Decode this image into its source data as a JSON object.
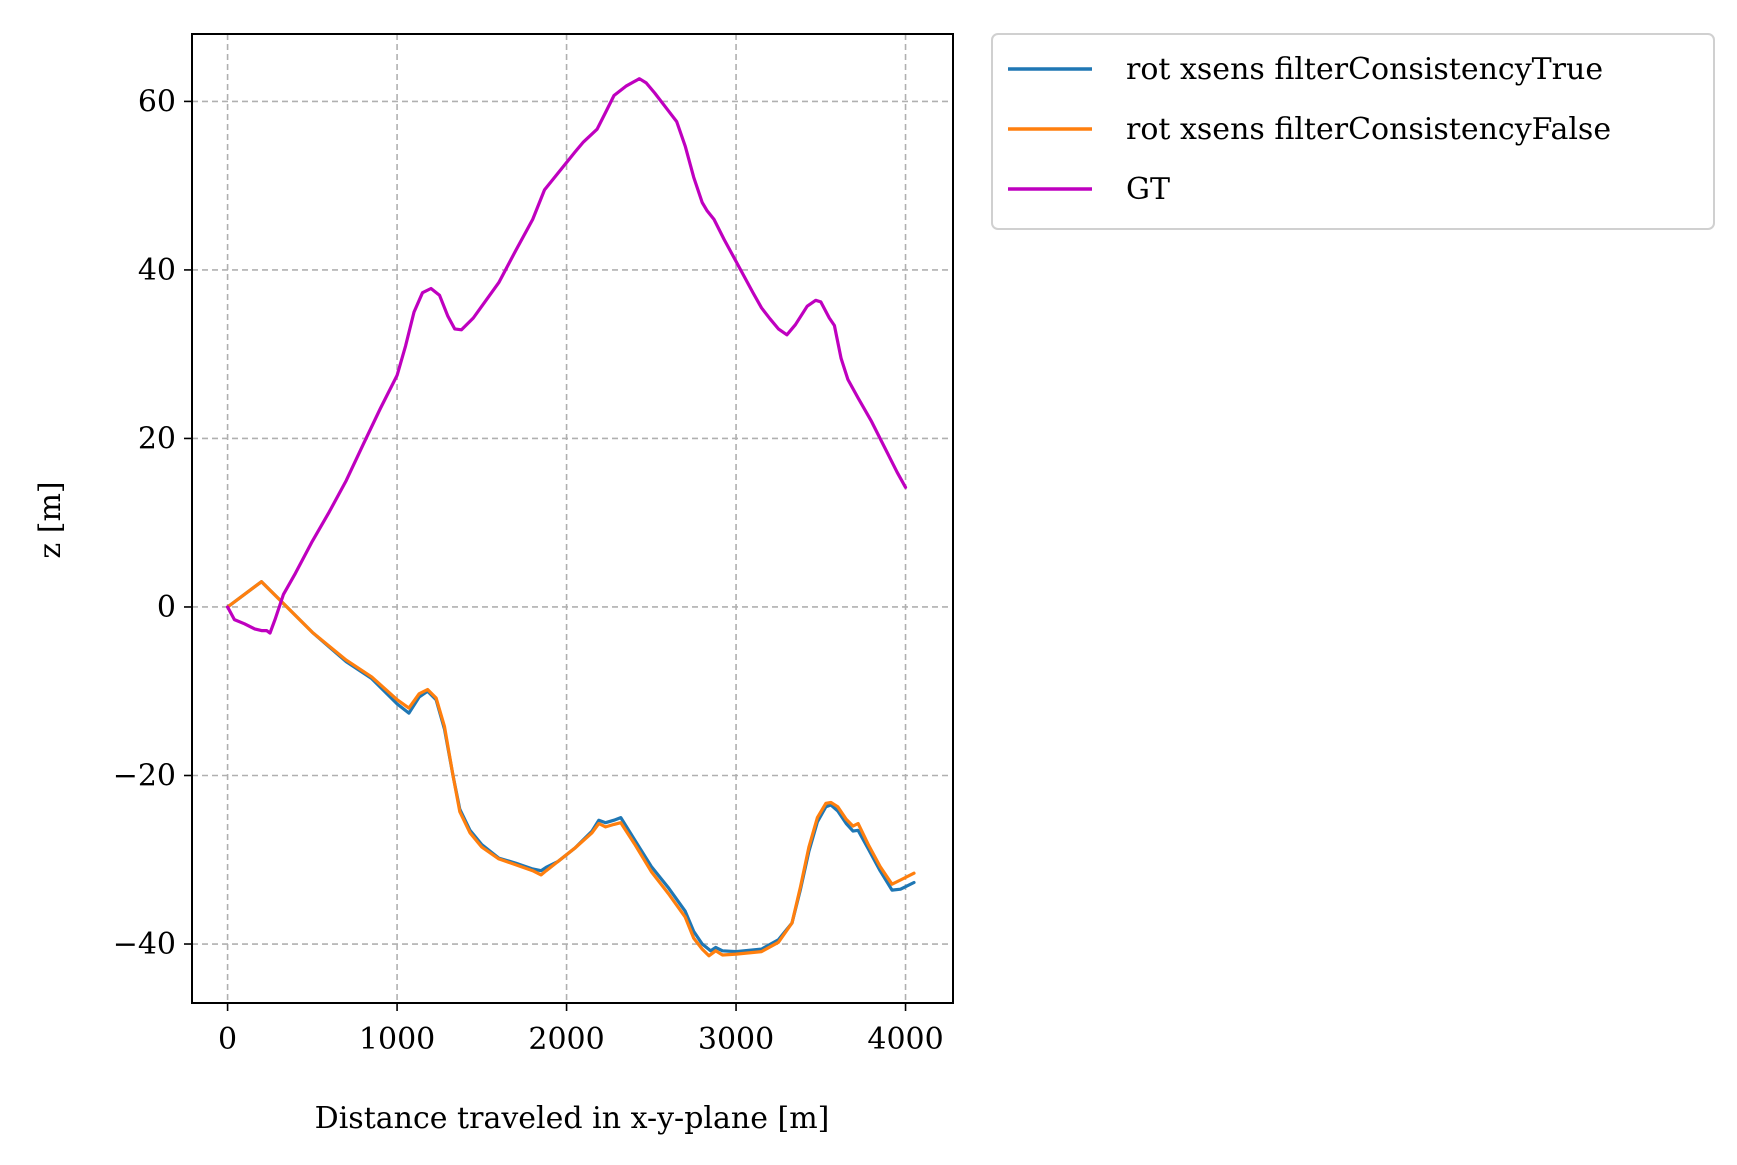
{
  "chart_data": {
    "type": "line",
    "xlabel": "Distance traveled in x-y-plane [m]",
    "ylabel": "z [m]",
    "xlim": [
      -210,
      4280
    ],
    "ylim": [
      -47,
      68
    ],
    "xticks": [
      0,
      1000,
      2000,
      3000,
      4000
    ],
    "yticks": [
      -40,
      -20,
      0,
      20,
      40,
      60
    ],
    "xtick_labels": [
      "0",
      "1000",
      "2000",
      "3000",
      "4000"
    ],
    "ytick_labels": [
      "−40",
      "−20",
      "0",
      "20",
      "40",
      "60"
    ],
    "grid": true,
    "legend_position": "outside-top-right",
    "series": [
      {
        "name": "rot xsens filterConsistencyTrue",
        "color": "#1f77b4",
        "points": [
          [
            0,
            0
          ],
          [
            200,
            3
          ],
          [
            300,
            1
          ],
          [
            500,
            -3
          ],
          [
            700,
            -6.5
          ],
          [
            850,
            -8.5
          ],
          [
            1000,
            -11.5
          ],
          [
            1070,
            -12.6
          ],
          [
            1130,
            -10.7
          ],
          [
            1180,
            -10
          ],
          [
            1230,
            -11
          ],
          [
            1280,
            -14.5
          ],
          [
            1330,
            -20
          ],
          [
            1370,
            -24
          ],
          [
            1430,
            -26.5
          ],
          [
            1500,
            -28.2
          ],
          [
            1600,
            -29.8
          ],
          [
            1700,
            -30.4
          ],
          [
            1800,
            -31.1
          ],
          [
            1850,
            -31.3
          ],
          [
            1880,
            -30.9
          ],
          [
            1950,
            -30.2
          ],
          [
            2050,
            -28.6
          ],
          [
            2150,
            -26.6
          ],
          [
            2190,
            -25.3
          ],
          [
            2230,
            -25.6
          ],
          [
            2280,
            -25.3
          ],
          [
            2320,
            -25
          ],
          [
            2400,
            -27.6
          ],
          [
            2500,
            -30.8
          ],
          [
            2600,
            -33.3
          ],
          [
            2700,
            -36.1
          ],
          [
            2750,
            -38.5
          ],
          [
            2800,
            -40
          ],
          [
            2850,
            -40.8
          ],
          [
            2880,
            -40.4
          ],
          [
            2920,
            -40.8
          ],
          [
            3000,
            -40.9
          ],
          [
            3150,
            -40.6
          ],
          [
            3250,
            -39.5
          ],
          [
            3330,
            -37.5
          ],
          [
            3380,
            -33.5
          ],
          [
            3430,
            -29
          ],
          [
            3480,
            -25.5
          ],
          [
            3530,
            -23.7
          ],
          [
            3560,
            -23.5
          ],
          [
            3600,
            -24.2
          ],
          [
            3650,
            -25.7
          ],
          [
            3690,
            -26.6
          ],
          [
            3720,
            -26.5
          ],
          [
            3780,
            -28.7
          ],
          [
            3850,
            -31.3
          ],
          [
            3920,
            -33.6
          ],
          [
            3970,
            -33.5
          ],
          [
            4050,
            -32.7
          ]
        ]
      },
      {
        "name": "rot xsens filterConsistencyFalse",
        "color": "#ff7f0e",
        "points": [
          [
            0,
            0
          ],
          [
            200,
            3
          ],
          [
            300,
            1
          ],
          [
            500,
            -3
          ],
          [
            700,
            -6.3
          ],
          [
            850,
            -8.3
          ],
          [
            1000,
            -11
          ],
          [
            1070,
            -12
          ],
          [
            1130,
            -10.3
          ],
          [
            1180,
            -9.8
          ],
          [
            1230,
            -10.8
          ],
          [
            1280,
            -14.2
          ],
          [
            1330,
            -20
          ],
          [
            1370,
            -24.3
          ],
          [
            1430,
            -26.8
          ],
          [
            1500,
            -28.5
          ],
          [
            1600,
            -29.9
          ],
          [
            1700,
            -30.6
          ],
          [
            1800,
            -31.3
          ],
          [
            1850,
            -31.8
          ],
          [
            1880,
            -31.3
          ],
          [
            1950,
            -30.2
          ],
          [
            2050,
            -28.6
          ],
          [
            2150,
            -26.8
          ],
          [
            2190,
            -25.7
          ],
          [
            2230,
            -26.1
          ],
          [
            2280,
            -25.8
          ],
          [
            2320,
            -25.6
          ],
          [
            2400,
            -28.1
          ],
          [
            2500,
            -31.4
          ],
          [
            2600,
            -34
          ],
          [
            2700,
            -36.8
          ],
          [
            2750,
            -39.3
          ],
          [
            2800,
            -40.6
          ],
          [
            2840,
            -41.4
          ],
          [
            2880,
            -40.8
          ],
          [
            2920,
            -41.3
          ],
          [
            3000,
            -41.2
          ],
          [
            3150,
            -40.9
          ],
          [
            3250,
            -39.8
          ],
          [
            3330,
            -37.5
          ],
          [
            3380,
            -33.2
          ],
          [
            3430,
            -28.5
          ],
          [
            3480,
            -25
          ],
          [
            3530,
            -23.3
          ],
          [
            3560,
            -23.2
          ],
          [
            3600,
            -23.7
          ],
          [
            3650,
            -25.2
          ],
          [
            3690,
            -26
          ],
          [
            3720,
            -25.7
          ],
          [
            3780,
            -28.2
          ],
          [
            3850,
            -30.8
          ],
          [
            3920,
            -32.9
          ],
          [
            3970,
            -32.4
          ],
          [
            4050,
            -31.6
          ]
        ]
      },
      {
        "name": "GT",
        "color": "#bf00bf",
        "points": [
          [
            0,
            0
          ],
          [
            40,
            -1.5
          ],
          [
            100,
            -2
          ],
          [
            160,
            -2.6
          ],
          [
            200,
            -2.8
          ],
          [
            230,
            -2.8
          ],
          [
            250,
            -3.1
          ],
          [
            280,
            -1.5
          ],
          [
            330,
            1.5
          ],
          [
            400,
            4
          ],
          [
            500,
            7.8
          ],
          [
            600,
            11.3
          ],
          [
            700,
            15
          ],
          [
            800,
            19.3
          ],
          [
            900,
            23.5
          ],
          [
            1000,
            27.5
          ],
          [
            1050,
            31
          ],
          [
            1100,
            35
          ],
          [
            1150,
            37.3
          ],
          [
            1200,
            37.8
          ],
          [
            1250,
            37
          ],
          [
            1300,
            34.5
          ],
          [
            1340,
            33
          ],
          [
            1380,
            32.9
          ],
          [
            1450,
            34.3
          ],
          [
            1500,
            35.7
          ],
          [
            1600,
            38.5
          ],
          [
            1700,
            42.3
          ],
          [
            1800,
            46
          ],
          [
            1870,
            49.5
          ],
          [
            1950,
            51.5
          ],
          [
            2050,
            54
          ],
          [
            2100,
            55.2
          ],
          [
            2180,
            56.7
          ],
          [
            2230,
            58.7
          ],
          [
            2280,
            60.7
          ],
          [
            2350,
            61.8
          ],
          [
            2430,
            62.7
          ],
          [
            2470,
            62.2
          ],
          [
            2520,
            61
          ],
          [
            2600,
            58.9
          ],
          [
            2650,
            57.6
          ],
          [
            2700,
            54.7
          ],
          [
            2750,
            51
          ],
          [
            2800,
            48
          ],
          [
            2830,
            47
          ],
          [
            2870,
            46
          ],
          [
            2930,
            43.6
          ],
          [
            3000,
            41
          ],
          [
            3100,
            37.3
          ],
          [
            3150,
            35.5
          ],
          [
            3200,
            34.2
          ],
          [
            3250,
            33
          ],
          [
            3300,
            32.3
          ],
          [
            3350,
            33.5
          ],
          [
            3420,
            35.7
          ],
          [
            3470,
            36.4
          ],
          [
            3500,
            36.2
          ],
          [
            3550,
            34.3
          ],
          [
            3580,
            33.4
          ],
          [
            3620,
            29.5
          ],
          [
            3660,
            27
          ],
          [
            3720,
            24.8
          ],
          [
            3800,
            22
          ],
          [
            3850,
            20
          ],
          [
            3900,
            18
          ],
          [
            3950,
            16
          ],
          [
            4000,
            14.2
          ]
        ]
      }
    ]
  }
}
